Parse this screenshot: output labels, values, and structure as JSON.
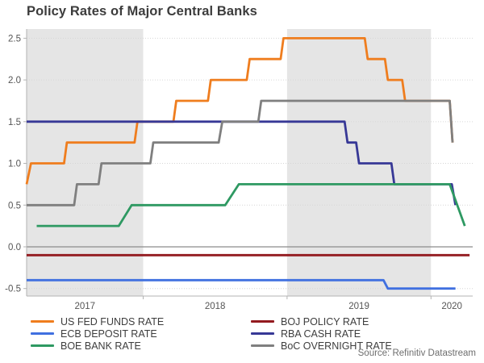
{
  "header": {
    "title": "Policy Rates of Major Central Banks"
  },
  "footer": {
    "source": "Source: Refinitiv Datastream"
  },
  "chart_data": {
    "type": "line",
    "title": "Policy Rates of Major Central Banks",
    "xlabel": "",
    "ylabel": "",
    "xlim": [
      2017.19,
      2020.29
    ],
    "ylim": [
      -0.59,
      2.61
    ],
    "grid": "horizontal-dotted",
    "legend_position": "bottom-two-columns",
    "y_ticks": [
      {
        "v": 2.5,
        "label": "2.5"
      },
      {
        "v": 2.0,
        "label": "2.0"
      },
      {
        "v": 1.5,
        "label": "1.5"
      },
      {
        "v": 1.0,
        "label": "1.0"
      },
      {
        "v": 0.5,
        "label": "0.5"
      },
      {
        "v": 0.0,
        "label": "0.0"
      },
      {
        "v": -0.5,
        "label": "-0.5"
      }
    ],
    "x_ticks": [
      {
        "label": "2017",
        "t": 2017.595
      },
      {
        "label": "2018",
        "t": 2018.5
      },
      {
        "label": "2019",
        "t": 2019.5
      },
      {
        "label": "2020",
        "t": 2020.145
      }
    ],
    "x_boundary_ticks": [
      2018,
      2019,
      2020
    ],
    "shaded_bands": [
      {
        "from": 2017.19,
        "to": 2018.0
      },
      {
        "from": 2019.0,
        "to": 2020.0
      }
    ],
    "band_color": "#e5e5e5",
    "zero_line_value": 0,
    "zero_line_color": "#8c8c8c",
    "grid_color": "#d6d6d6",
    "axis_color": "#b3b3b3",
    "tick_label_color": "#555555",
    "series": [
      {
        "name": "US FED FUNDS RATE",
        "color": "#ef7d1e",
        "points": [
          [
            2017.19,
            0.75
          ],
          [
            2017.22,
            1.0
          ],
          [
            2017.45,
            1.0
          ],
          [
            2017.47,
            1.25
          ],
          [
            2017.94,
            1.25
          ],
          [
            2017.96,
            1.5
          ],
          [
            2018.21,
            1.5
          ],
          [
            2018.23,
            1.75
          ],
          [
            2018.45,
            1.75
          ],
          [
            2018.47,
            2.0
          ],
          [
            2018.72,
            2.0
          ],
          [
            2018.74,
            2.25
          ],
          [
            2018.955,
            2.25
          ],
          [
            2018.975,
            2.5
          ],
          [
            2019.54,
            2.5
          ],
          [
            2019.56,
            2.25
          ],
          [
            2019.68,
            2.25
          ],
          [
            2019.7,
            2.0
          ],
          [
            2019.8,
            2.0
          ],
          [
            2019.82,
            1.75
          ],
          [
            2020.13,
            1.75
          ],
          [
            2020.15,
            1.25
          ]
        ]
      },
      {
        "name": "ECB DEPOSIT RATE",
        "color": "#4070e0",
        "points": [
          [
            2017.19,
            -0.4
          ],
          [
            2019.67,
            -0.4
          ],
          [
            2019.7,
            -0.5
          ],
          [
            2020.17,
            -0.5
          ]
        ]
      },
      {
        "name": "BOE BANK RATE",
        "color": "#2e9962",
        "points": [
          [
            2017.26,
            0.25
          ],
          [
            2017.83,
            0.25
          ],
          [
            2017.92,
            0.5
          ],
          [
            2018.57,
            0.5
          ],
          [
            2018.665,
            0.75
          ],
          [
            2020.13,
            0.75
          ],
          [
            2020.235,
            0.25
          ]
        ]
      },
      {
        "name": "BOJ POLICY RATE",
        "color": "#931a1f",
        "points": [
          [
            2017.19,
            -0.1
          ],
          [
            2020.268,
            -0.1
          ]
        ]
      },
      {
        "name": "RBA CASH RATE",
        "color": "#373896",
        "points": [
          [
            2017.19,
            1.5
          ],
          [
            2019.4,
            1.5
          ],
          [
            2019.42,
            1.25
          ],
          [
            2019.48,
            1.25
          ],
          [
            2019.5,
            1.0
          ],
          [
            2019.725,
            1.0
          ],
          [
            2019.745,
            0.75
          ],
          [
            2020.145,
            0.75
          ],
          [
            2020.17,
            0.5
          ]
        ]
      },
      {
        "name": "BoC OVERNIGHT RATE",
        "color": "#7f7f7f",
        "points": [
          [
            2017.19,
            0.5
          ],
          [
            2017.52,
            0.5
          ],
          [
            2017.54,
            0.75
          ],
          [
            2017.69,
            0.75
          ],
          [
            2017.71,
            1.0
          ],
          [
            2018.05,
            1.0
          ],
          [
            2018.07,
            1.25
          ],
          [
            2018.525,
            1.25
          ],
          [
            2018.55,
            1.5
          ],
          [
            2018.8,
            1.5
          ],
          [
            2018.82,
            1.75
          ],
          [
            2020.13,
            1.75
          ],
          [
            2020.15,
            1.25
          ]
        ]
      }
    ],
    "draw_order": [
      0,
      1,
      3,
      4,
      2,
      5
    ]
  }
}
